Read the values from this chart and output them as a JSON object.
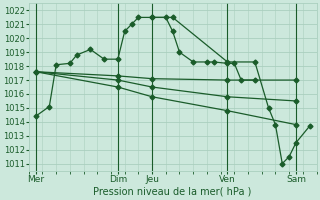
{
  "background_color": "#cce8dc",
  "grid_color": "#aacfbf",
  "line_color": "#1a5c2a",
  "marker_color": "#1a5c2a",
  "xlabel_text": "Pression niveau de la mer( hPa )",
  "ylim": [
    1010.5,
    1022.5
  ],
  "yticks": [
    1011,
    1012,
    1013,
    1014,
    1015,
    1016,
    1017,
    1018,
    1019,
    1020,
    1021,
    1022
  ],
  "xlim": [
    0,
    21
  ],
  "xtick_labels": [
    "Mer",
    "Dim",
    "Jeu",
    "Ven",
    "Sam"
  ],
  "xtick_positions": [
    0.5,
    6.5,
    9.0,
    14.5,
    19.5
  ],
  "dark_vlines": [
    0.5,
    6.5,
    9.0,
    14.5,
    19.5
  ],
  "series1": {
    "x": [
      0.5,
      1.5,
      2.0,
      3.0,
      3.5,
      4.5,
      5.5,
      6.5,
      7.0,
      7.5,
      8.0,
      9.0,
      10.0,
      10.5,
      11.0,
      12.0,
      13.0,
      13.5,
      14.5,
      15.0,
      15.5,
      16.5
    ],
    "y": [
      1014.4,
      1015.1,
      1018.1,
      1018.2,
      1018.8,
      1019.2,
      1018.5,
      1018.5,
      1020.5,
      1021.0,
      1021.5,
      1021.5,
      1021.5,
      1020.5,
      1019.0,
      1018.3,
      1018.3,
      1018.3,
      1018.2,
      1018.2,
      1017.0,
      1017.0
    ]
  },
  "series2": {
    "x": [
      0.5,
      6.5,
      9.0,
      14.5,
      19.5
    ],
    "y": [
      1017.6,
      1017.3,
      1017.1,
      1017.0,
      1017.0
    ]
  },
  "series3": {
    "x": [
      0.5,
      6.5,
      9.0,
      14.5,
      19.5
    ],
    "y": [
      1017.6,
      1017.0,
      1016.5,
      1015.8,
      1015.5
    ]
  },
  "series4": {
    "x": [
      0.5,
      6.5,
      9.0,
      14.5,
      19.5
    ],
    "y": [
      1017.6,
      1016.5,
      1015.8,
      1014.8,
      1013.8
    ]
  },
  "series5": {
    "x": [
      9.0,
      10.5,
      14.5,
      16.5,
      17.5,
      18.0,
      18.5,
      19.0,
      19.5,
      20.5
    ],
    "y": [
      1021.5,
      1021.5,
      1018.3,
      1018.3,
      1015.0,
      1013.8,
      1011.0,
      1011.5,
      1012.5,
      1013.7
    ]
  }
}
